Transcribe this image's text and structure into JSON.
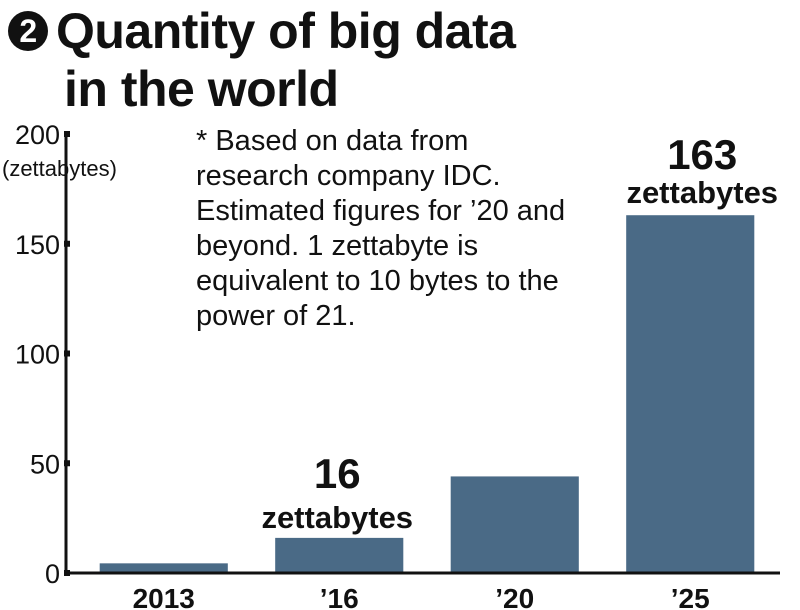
{
  "header": {
    "badge": "2",
    "title_line1": "Quantity of big data",
    "title_line2": "in the world"
  },
  "note": "* Based on data from research company IDC. Estimated figures for ’20 and beyond. 1 zettabyte is equivalent to 10 bytes to the power of 21.",
  "colors": {
    "bar": "#4a6a86",
    "axis": "#111111"
  },
  "chart_data": {
    "type": "bar",
    "title": "Quantity of big data in the world",
    "ylabel": "(zettabytes)",
    "ylim": [
      0,
      200
    ],
    "yticks": [
      0,
      50,
      100,
      150,
      200
    ],
    "categories": [
      "2013",
      "’16",
      "’20",
      "’25"
    ],
    "values": [
      4.4,
      16,
      44,
      163
    ],
    "data_labels": [
      {
        "category": "’16",
        "value": "16",
        "unit": "zettabytes"
      },
      {
        "category": "’25",
        "value": "163",
        "unit": "zettabytes"
      }
    ],
    "grid": false,
    "legend": "none"
  }
}
